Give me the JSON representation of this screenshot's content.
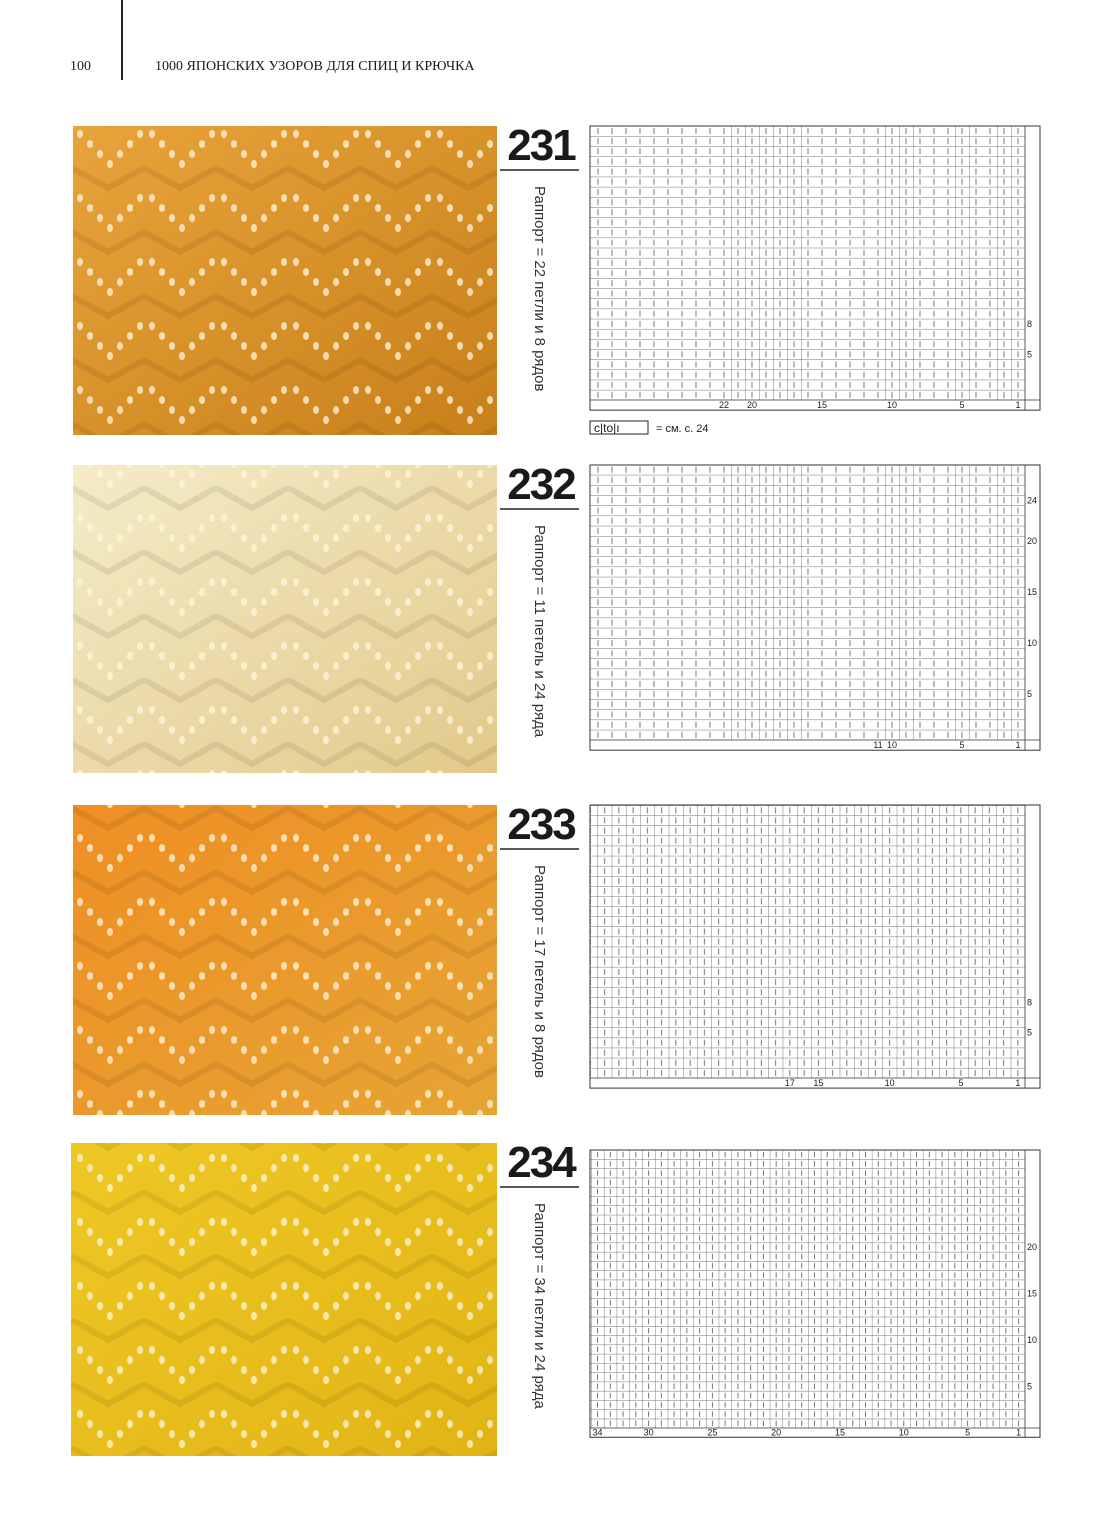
{
  "header": {
    "page_number": "100",
    "title": "1000 ЯПОНСКИХ УЗОРОВ ДЛЯ СПИЦ И КРЮЧКА"
  },
  "patterns": [
    {
      "number": "231",
      "repeat": "Раппорт = 22 петли и 8 рядов",
      "chart": {
        "column_labels": [
          "22",
          "20",
          "15",
          "10",
          "5",
          "1"
        ],
        "row_labels": [
          "8",
          "5"
        ]
      },
      "legend": {
        "text": "= см. с. 24"
      }
    },
    {
      "number": "232",
      "repeat": "Раппорт = 11 петель и 24 ряда",
      "chart": {
        "column_labels": [
          "11",
          "10",
          "5",
          "1"
        ],
        "row_labels": [
          "24",
          "20",
          "15",
          "10",
          "5"
        ]
      }
    },
    {
      "number": "233",
      "repeat": "Раппорт = 17 петель и 8 рядов",
      "chart": {
        "column_labels": [
          "17",
          "15",
          "10",
          "5",
          "1"
        ],
        "row_labels": [
          "8",
          "5"
        ]
      }
    },
    {
      "number": "234",
      "repeat": "Раппорт = 34 петли и 24 ряда",
      "chart": {
        "column_labels": [
          "34",
          "30",
          "25",
          "20",
          "15",
          "10",
          "5",
          "1"
        ],
        "row_labels": [
          "20",
          "15",
          "10",
          "5"
        ]
      }
    }
  ]
}
